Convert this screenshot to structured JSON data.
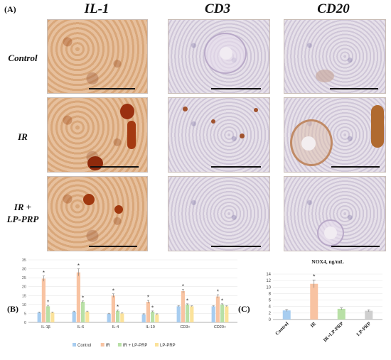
{
  "panels": {
    "a_letter": "(A)",
    "b_letter": "(B)",
    "c_letter": "(C)"
  },
  "columns": [
    "IL-1",
    "CD3",
    "CD20"
  ],
  "rows": [
    {
      "line1": "Control",
      "line2": ""
    },
    {
      "line1": "IR",
      "line2": ""
    },
    {
      "line1": "IR +",
      "line2": "LP-PRP"
    }
  ],
  "colors": {
    "control": "#a7cdf0",
    "ir": "#f8c3a2",
    "ir_lp_prp": "#b8e0a6",
    "lp_prp": "#fbe29a",
    "nox_control": "#a7cdf0",
    "nox_ir": "#f8c3a2",
    "nox_ir_lp_prp": "#b8e0a6",
    "nox_lp_prp": "#cfcfcf"
  },
  "chart_data": [
    {
      "type": "bar",
      "categories": [
        "IL-1β",
        "IL-6",
        "IL-4",
        "IL-10",
        "CD3+",
        "CD20+"
      ],
      "series": [
        {
          "name": "Control",
          "values": [
            5.5,
            6,
            4.8,
            4.5,
            9,
            9
          ]
        },
        {
          "name": "IR",
          "values": [
            24.5,
            28,
            15,
            11.5,
            17.5,
            14.5
          ]
        },
        {
          "name": "IR + LP-PRP",
          "values": [
            9,
            11.5,
            6.5,
            6,
            10,
            10
          ]
        },
        {
          "name": "LP-PRP",
          "values": [
            5.5,
            6,
            5,
            4.5,
            9,
            9
          ]
        }
      ],
      "errors": [
        [
          0.3,
          0.3,
          0.3,
          0.3,
          0.3,
          0.3
        ],
        [
          1.5,
          2,
          1,
          0.8,
          1,
          1
        ],
        [
          0.5,
          0.5,
          0.4,
          0.4,
          0.4,
          0.4
        ],
        [
          0.3,
          0.3,
          0.3,
          0.3,
          0.3,
          0.3
        ]
      ],
      "star_series": [
        1,
        2
      ],
      "yticks": [
        "0",
        "5",
        "10",
        "15",
        "20",
        "25",
        "30",
        "35"
      ],
      "ylim": [
        0,
        35
      ],
      "legend_position": "bottom",
      "title": "",
      "xlabel": "",
      "ylabel": ""
    },
    {
      "type": "bar",
      "title": "NOX4, ng/mL",
      "categories": [
        "Control",
        "IR",
        "IR+LP-PRP",
        "LP-PRP"
      ],
      "values": [
        2.8,
        11,
        3.3,
        2.7
      ],
      "errors": [
        0.3,
        1.2,
        0.3,
        0.3
      ],
      "stars": [
        false,
        true,
        false,
        false
      ],
      "yticks": [
        "0",
        "2",
        "4",
        "6",
        "8",
        "10",
        "12",
        "14"
      ],
      "ylim": [
        0,
        14
      ],
      "xlabel": "",
      "ylabel": ""
    }
  ],
  "star": "*"
}
